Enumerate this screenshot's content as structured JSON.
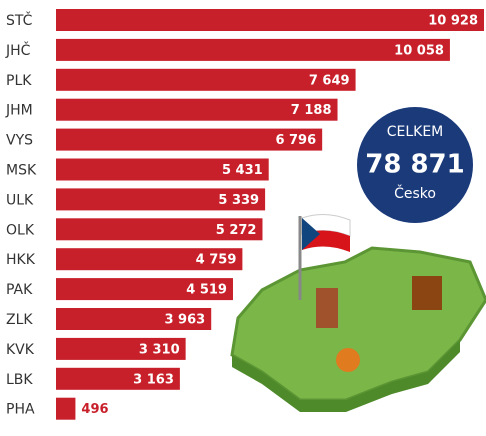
{
  "chart_data": {
    "type": "barh",
    "categories": [
      "STČ",
      "JHČ",
      "PLK",
      "JHM",
      "VYS",
      "MSK",
      "ULK",
      "OLK",
      "HKK",
      "PAK",
      "ZLK",
      "KVK",
      "LBK",
      "PHA"
    ],
    "values": [
      10928,
      10058,
      7649,
      7188,
      6796,
      5431,
      5339,
      5272,
      4759,
      4519,
      3963,
      3310,
      3163,
      496
    ],
    "value_labels": [
      "10 928",
      "10 058",
      "7 649",
      "7 188",
      "6 796",
      "5 431",
      "5 339",
      "5 272",
      "4 759",
      "4 519",
      "3 963",
      "3 310",
      "3 163",
      "496"
    ],
    "color": "#c8202a",
    "annotation": {
      "title": "CELKEM",
      "total": "78 871",
      "subtitle": "Česko"
    }
  }
}
